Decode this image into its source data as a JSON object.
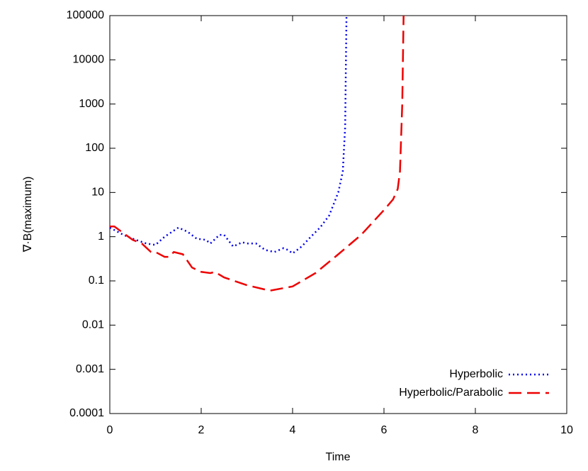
{
  "chart_data": {
    "type": "line",
    "x_label": "Time",
    "y_label": "∇·B(maximum)",
    "log_y": true,
    "legend": "lower right",
    "xlim": [
      0,
      10
    ],
    "xticks": [
      0,
      2,
      4,
      6,
      8,
      10
    ],
    "ylim": [
      0.0001,
      100000
    ],
    "yticks": [
      0.0001,
      0.001,
      0.01,
      0.1,
      1,
      10,
      100,
      1000,
      10000,
      100000
    ],
    "series": [
      {
        "name": "Hyperbolic",
        "color": "#0000ee",
        "style": "dotted",
        "x": [
          0,
          0.3,
          0.5,
          0.8,
          1.0,
          1.2,
          1.5,
          1.7,
          1.9,
          2.1,
          2.2,
          2.4,
          2.5,
          2.7,
          2.9,
          3.0,
          3.2,
          3.4,
          3.6,
          3.8,
          3.9,
          4.0,
          4.2,
          4.4,
          4.6,
          4.8,
          5.0,
          5.1,
          5.15,
          5.18
        ],
        "values": [
          1.6,
          1.1,
          0.9,
          0.7,
          0.65,
          1.0,
          1.6,
          1.3,
          0.9,
          0.85,
          0.7,
          1.1,
          1.1,
          0.6,
          0.75,
          0.7,
          0.7,
          0.5,
          0.45,
          0.55,
          0.5,
          0.42,
          0.6,
          1.0,
          1.6,
          3,
          10,
          30,
          300,
          100000
        ]
      },
      {
        "name": "Hyperbolic/Parabolic",
        "color": "#ee0000",
        "style": "dashed",
        "x": [
          0,
          0.1,
          0.3,
          0.5,
          0.7,
          0.9,
          1.0,
          1.2,
          1.3,
          1.4,
          1.6,
          1.8,
          2.0,
          2.2,
          2.3,
          2.5,
          3.0,
          3.5,
          4.0,
          4.5,
          5.0,
          5.5,
          6.0,
          6.2,
          6.3,
          6.35,
          6.4,
          6.43
        ],
        "values": [
          1.7,
          1.7,
          1.2,
          0.85,
          0.7,
          0.45,
          0.45,
          0.35,
          0.35,
          0.45,
          0.4,
          0.2,
          0.16,
          0.15,
          0.16,
          0.12,
          0.08,
          0.06,
          0.075,
          0.15,
          0.4,
          1.1,
          4,
          7,
          12,
          30,
          1000,
          100000
        ]
      }
    ]
  }
}
